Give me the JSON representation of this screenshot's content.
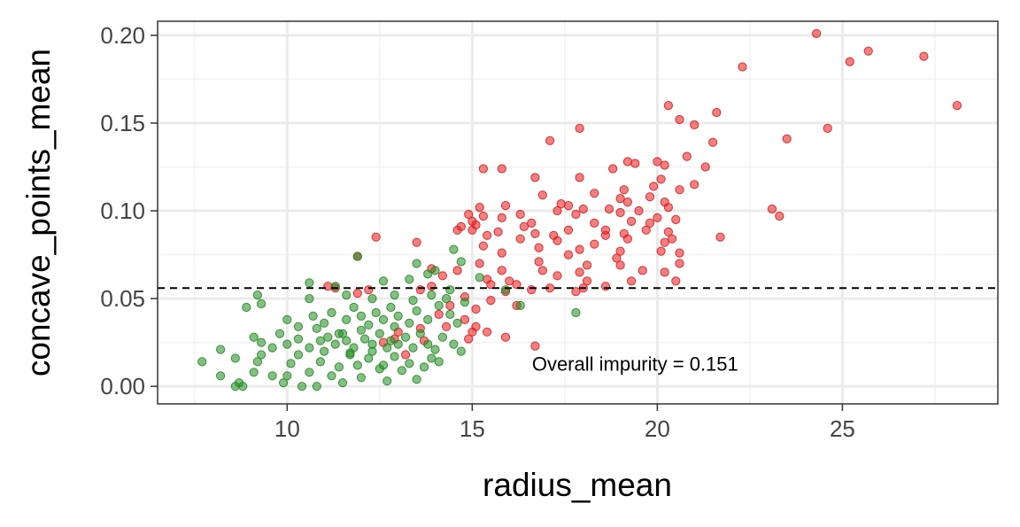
{
  "chart_data": {
    "type": "scatter",
    "xlabel": "radius_mean",
    "ylabel": "concave_points_mean",
    "xlim": [
      6.5,
      29.2
    ],
    "ylim": [
      -0.01,
      0.208
    ],
    "x_ticks": [
      10,
      15,
      20,
      25
    ],
    "y_ticks": [
      0.0,
      0.05,
      0.1,
      0.15,
      0.2
    ],
    "y_tick_labels": [
      "0.00",
      "0.05",
      "0.10",
      "0.15",
      "0.20"
    ],
    "grid": true,
    "legend": "none",
    "threshold": 0.056,
    "annotation": {
      "text": "Overall impurity = 0.151",
      "x": 19.4,
      "y": 0.009
    },
    "colors": {
      "red_series": "#f8766d",
      "red_fill": "#e41a1c",
      "green_fill": "#228b22",
      "panel_border": "#333333",
      "grid_major": "#ebebeb"
    },
    "series": [
      {
        "color": "#e41a1c",
        "points": [
          [
            24.3,
            0.201
          ],
          [
            25.7,
            0.191
          ],
          [
            27.2,
            0.188
          ],
          [
            25.2,
            0.185
          ],
          [
            22.3,
            0.182
          ],
          [
            28.1,
            0.16
          ],
          [
            20.3,
            0.16
          ],
          [
            21.6,
            0.156
          ],
          [
            20.6,
            0.152
          ],
          [
            21.0,
            0.149
          ],
          [
            17.9,
            0.147
          ],
          [
            24.6,
            0.147
          ],
          [
            17.1,
            0.14
          ],
          [
            21.5,
            0.139
          ],
          [
            23.5,
            0.141
          ],
          [
            20.8,
            0.131
          ],
          [
            19.2,
            0.128
          ],
          [
            20.0,
            0.128
          ],
          [
            19.4,
            0.127
          ],
          [
            20.2,
            0.126
          ],
          [
            21.3,
            0.125
          ],
          [
            15.3,
            0.124
          ],
          [
            15.8,
            0.124
          ],
          [
            18.8,
            0.124
          ],
          [
            16.7,
            0.119
          ],
          [
            17.9,
            0.119
          ],
          [
            20.1,
            0.118
          ],
          [
            19.9,
            0.114
          ],
          [
            20.6,
            0.112
          ],
          [
            21.0,
            0.115
          ],
          [
            19.1,
            0.112
          ],
          [
            19.8,
            0.108
          ],
          [
            18.3,
            0.11
          ],
          [
            16.9,
            0.109
          ],
          [
            19.0,
            0.107
          ],
          [
            19.2,
            0.105
          ],
          [
            20.2,
            0.105
          ],
          [
            15.2,
            0.102
          ],
          [
            15.9,
            0.103
          ],
          [
            17.4,
            0.104
          ],
          [
            17.6,
            0.103
          ],
          [
            17.3,
            0.1
          ],
          [
            18.0,
            0.101
          ],
          [
            18.7,
            0.101
          ],
          [
            19.5,
            0.1
          ],
          [
            20.3,
            0.102
          ],
          [
            14.9,
            0.098
          ],
          [
            15.3,
            0.097
          ],
          [
            16.3,
            0.098
          ],
          [
            17.8,
            0.098
          ],
          [
            19.0,
            0.099
          ],
          [
            20.0,
            0.096
          ],
          [
            20.5,
            0.095
          ],
          [
            23.1,
            0.101
          ],
          [
            23.3,
            0.097
          ],
          [
            15.0,
            0.094
          ],
          [
            15.8,
            0.096
          ],
          [
            16.6,
            0.093
          ],
          [
            18.3,
            0.093
          ],
          [
            19.3,
            0.094
          ],
          [
            19.8,
            0.093
          ],
          [
            14.7,
            0.091
          ],
          [
            15.1,
            0.092
          ],
          [
            16.4,
            0.091
          ],
          [
            17.6,
            0.089
          ],
          [
            18.6,
            0.089
          ],
          [
            19.7,
            0.089
          ],
          [
            20.3,
            0.088
          ],
          [
            15.0,
            0.089
          ],
          [
            15.7,
            0.088
          ],
          [
            16.7,
            0.087
          ],
          [
            17.2,
            0.086
          ],
          [
            18.6,
            0.086
          ],
          [
            19.1,
            0.087
          ],
          [
            20.4,
            0.084
          ],
          [
            21.7,
            0.085
          ],
          [
            12.4,
            0.085
          ],
          [
            13.5,
            0.082
          ],
          [
            14.6,
            0.089
          ],
          [
            15.4,
            0.086
          ],
          [
            16.3,
            0.084
          ],
          [
            17.3,
            0.083
          ],
          [
            18.3,
            0.081
          ],
          [
            19.2,
            0.084
          ],
          [
            20.2,
            0.082
          ],
          [
            15.3,
            0.08
          ],
          [
            16.8,
            0.079
          ],
          [
            17.9,
            0.078
          ],
          [
            19.0,
            0.077
          ],
          [
            20.1,
            0.077
          ],
          [
            11.9,
            0.074
          ],
          [
            15.8,
            0.076
          ],
          [
            17.6,
            0.075
          ],
          [
            18.9,
            0.073
          ],
          [
            20.6,
            0.076
          ],
          [
            15.2,
            0.07
          ],
          [
            16.8,
            0.071
          ],
          [
            18.1,
            0.069
          ],
          [
            19.0,
            0.069
          ],
          [
            20.6,
            0.07
          ],
          [
            13.9,
            0.067
          ],
          [
            14.6,
            0.066
          ],
          [
            15.8,
            0.066
          ],
          [
            16.9,
            0.066
          ],
          [
            17.9,
            0.065
          ],
          [
            19.6,
            0.066
          ],
          [
            20.2,
            0.065
          ],
          [
            14.2,
            0.063
          ],
          [
            15.4,
            0.061
          ],
          [
            16.0,
            0.06
          ],
          [
            17.3,
            0.063
          ],
          [
            18.1,
            0.06
          ],
          [
            19.3,
            0.06
          ],
          [
            20.5,
            0.06
          ],
          [
            11.1,
            0.057
          ],
          [
            13.9,
            0.057
          ],
          [
            15.5,
            0.058
          ],
          [
            16.2,
            0.058
          ],
          [
            17.1,
            0.056
          ],
          [
            18.0,
            0.056
          ],
          [
            18.6,
            0.057
          ],
          [
            11.3,
            0.056
          ],
          [
            12.2,
            0.055
          ],
          [
            13.6,
            0.055
          ],
          [
            15.9,
            0.054
          ],
          [
            16.6,
            0.055
          ],
          [
            17.8,
            0.054
          ],
          [
            11.9,
            0.053
          ],
          [
            14.8,
            0.051
          ],
          [
            15.5,
            0.049
          ],
          [
            16.2,
            0.046
          ],
          [
            14.4,
            0.046
          ],
          [
            15.1,
            0.044
          ],
          [
            14.1,
            0.041
          ],
          [
            14.8,
            0.038
          ],
          [
            15.1,
            0.034
          ],
          [
            14.3,
            0.034
          ],
          [
            15.0,
            0.031
          ],
          [
            13.6,
            0.033
          ],
          [
            13.0,
            0.031
          ],
          [
            12.9,
            0.027
          ],
          [
            15.9,
            0.028
          ],
          [
            13.7,
            0.026
          ],
          [
            14.9,
            0.027
          ],
          [
            12.6,
            0.025
          ],
          [
            16.7,
            0.023
          ],
          [
            13.2,
            0.018
          ],
          [
            15.4,
            0.031
          ]
        ]
      },
      {
        "color": "#228b22",
        "points": [
          [
            7.7,
            0.014
          ],
          [
            8.2,
            0.006
          ],
          [
            8.6,
            0.0
          ],
          [
            8.8,
            0.0
          ],
          [
            8.7,
            0.002
          ],
          [
            9.1,
            0.008
          ],
          [
            9.2,
            0.014
          ],
          [
            9.3,
            0.018
          ],
          [
            9.6,
            0.006
          ],
          [
            9.9,
            0.002
          ],
          [
            10.0,
            0.006
          ],
          [
            10.1,
            0.013
          ],
          [
            10.3,
            0.018
          ],
          [
            10.4,
            0.0
          ],
          [
            10.6,
            0.008
          ],
          [
            10.8,
            0.0
          ],
          [
            10.9,
            0.014
          ],
          [
            11.0,
            0.02
          ],
          [
            11.2,
            0.006
          ],
          [
            11.4,
            0.011
          ],
          [
            11.5,
            0.002
          ],
          [
            11.7,
            0.018
          ],
          [
            11.9,
            0.012
          ],
          [
            12.0,
            0.005
          ],
          [
            12.2,
            0.016
          ],
          [
            12.3,
            0.02
          ],
          [
            12.5,
            0.01
          ],
          [
            12.7,
            0.003
          ],
          [
            12.9,
            0.017
          ],
          [
            13.1,
            0.009
          ],
          [
            13.3,
            0.013
          ],
          [
            13.5,
            0.004
          ],
          [
            13.7,
            0.011
          ],
          [
            13.9,
            0.016
          ],
          [
            14.1,
            0.014
          ],
          [
            8.2,
            0.021
          ],
          [
            8.6,
            0.016
          ],
          [
            9.1,
            0.028
          ],
          [
            9.3,
            0.025
          ],
          [
            9.6,
            0.022
          ],
          [
            9.8,
            0.03
          ],
          [
            10.0,
            0.024
          ],
          [
            10.3,
            0.027
          ],
          [
            10.6,
            0.022
          ],
          [
            10.8,
            0.033
          ],
          [
            11.1,
            0.028
          ],
          [
            11.3,
            0.024
          ],
          [
            11.5,
            0.03
          ],
          [
            11.6,
            0.026
          ],
          [
            11.8,
            0.022
          ],
          [
            12.0,
            0.032
          ],
          [
            12.1,
            0.027
          ],
          [
            12.3,
            0.024
          ],
          [
            12.5,
            0.03
          ],
          [
            12.7,
            0.022
          ],
          [
            12.9,
            0.034
          ],
          [
            13.0,
            0.024
          ],
          [
            13.2,
            0.028
          ],
          [
            13.4,
            0.022
          ],
          [
            13.6,
            0.03
          ],
          [
            13.8,
            0.024
          ],
          [
            14.0,
            0.021
          ],
          [
            14.2,
            0.028
          ],
          [
            14.5,
            0.024
          ],
          [
            14.7,
            0.02
          ],
          [
            9.3,
            0.047
          ],
          [
            10.0,
            0.038
          ],
          [
            10.3,
            0.034
          ],
          [
            10.7,
            0.04
          ],
          [
            11.0,
            0.036
          ],
          [
            11.2,
            0.042
          ],
          [
            11.6,
            0.038
          ],
          [
            11.8,
            0.045
          ],
          [
            12.0,
            0.04
          ],
          [
            12.2,
            0.035
          ],
          [
            12.4,
            0.042
          ],
          [
            12.6,
            0.038
          ],
          [
            12.8,
            0.045
          ],
          [
            13.0,
            0.04
          ],
          [
            13.3,
            0.036
          ],
          [
            13.5,
            0.043
          ],
          [
            13.8,
            0.038
          ],
          [
            14.1,
            0.046
          ],
          [
            14.4,
            0.041
          ],
          [
            14.6,
            0.036
          ],
          [
            8.9,
            0.045
          ],
          [
            9.2,
            0.052
          ],
          [
            10.6,
            0.05
          ],
          [
            11.6,
            0.052
          ],
          [
            12.3,
            0.05
          ],
          [
            12.9,
            0.052
          ],
          [
            13.4,
            0.049
          ],
          [
            13.9,
            0.052
          ],
          [
            14.3,
            0.05
          ],
          [
            14.8,
            0.048
          ],
          [
            10.6,
            0.059
          ],
          [
            11.3,
            0.057
          ],
          [
            11.9,
            0.074
          ],
          [
            12.6,
            0.06
          ],
          [
            13.3,
            0.061
          ],
          [
            13.5,
            0.07
          ],
          [
            13.8,
            0.064
          ],
          [
            14.0,
            0.066
          ],
          [
            14.5,
            0.078
          ],
          [
            14.7,
            0.071
          ],
          [
            15.2,
            0.062
          ],
          [
            15.9,
            0.055
          ],
          [
            16.3,
            0.046
          ],
          [
            17.8,
            0.042
          ],
          [
            14.4,
            0.055
          ],
          [
            12.6,
            0.012
          ],
          [
            11.4,
            0.03
          ],
          [
            10.9,
            0.026
          ],
          [
            11.7,
            0.019
          ],
          [
            12.8,
            0.026
          ]
        ]
      }
    ]
  }
}
